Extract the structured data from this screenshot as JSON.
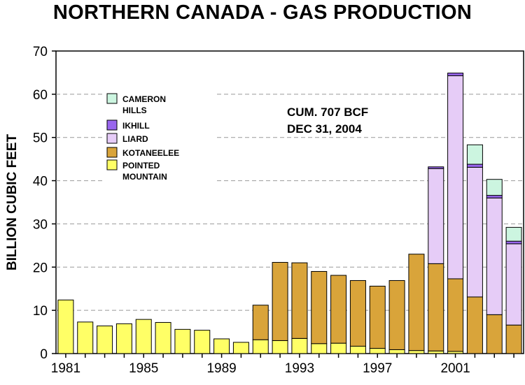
{
  "chart_data": {
    "type": "bar",
    "stacked": true,
    "title": "NORTHERN CANADA - GAS PRODUCTION",
    "xlabel": "",
    "ylabel": "BILLION CUBIC FEET",
    "ylim": [
      0,
      70
    ],
    "yticks": [
      0,
      10,
      20,
      30,
      40,
      50,
      60,
      70
    ],
    "grid": "horizontal dashed",
    "legend_position": "top-left",
    "categories": [
      "1981",
      "1982",
      "1983",
      "1984",
      "1985",
      "1986",
      "1987",
      "1988",
      "1989",
      "1990",
      "1991",
      "1992",
      "1993",
      "1994",
      "1995",
      "1996",
      "1997",
      "1998",
      "1999",
      "2000",
      "2001",
      "2002",
      "2003",
      "2004"
    ],
    "xtick_labels": [
      "1981",
      "1985",
      "1989",
      "1993",
      "1997",
      "2001"
    ],
    "series": [
      {
        "name": "POINTED MOUNTAIN",
        "color": "#ffff66",
        "values": [
          12.4,
          7.3,
          6.4,
          6.9,
          7.9,
          7.2,
          5.6,
          5.4,
          3.4,
          2.6,
          3.2,
          3.0,
          3.5,
          2.3,
          2.4,
          1.7,
          1.2,
          0.9,
          0.7,
          0.6,
          0.5,
          0,
          0,
          0
        ]
      },
      {
        "name": "KOTANEELEE",
        "color": "#d9a43a",
        "values": [
          0,
          0,
          0,
          0,
          0,
          0,
          0,
          0,
          0,
          0,
          8.0,
          18.1,
          17.5,
          16.7,
          15.7,
          15.2,
          14.4,
          16.0,
          22.3,
          20.2,
          16.8,
          13.1,
          9.0,
          6.6
        ]
      },
      {
        "name": "LIARD",
        "color": "#e6ccf7",
        "values": [
          0,
          0,
          0,
          0,
          0,
          0,
          0,
          0,
          0,
          0,
          0,
          0,
          0,
          0,
          0,
          0,
          0,
          0,
          0,
          22.0,
          47.0,
          30.0,
          27.0,
          18.8
        ]
      },
      {
        "name": "IKHILL",
        "color": "#9966ee",
        "values": [
          0,
          0,
          0,
          0,
          0,
          0,
          0,
          0,
          0,
          0,
          0,
          0,
          0,
          0,
          0,
          0,
          0,
          0,
          0,
          0.4,
          0.6,
          0.7,
          0.6,
          0.6
        ]
      },
      {
        "name": "CAMERON HILLS",
        "color": "#ccf5e0",
        "values": [
          0,
          0,
          0,
          0,
          0,
          0,
          0,
          0,
          0,
          0,
          0,
          0,
          0,
          0,
          0,
          0,
          0,
          0,
          0,
          0,
          0,
          4.5,
          3.7,
          3.2
        ]
      }
    ],
    "annotations": [
      "CUM. 707 BCF",
      "DEC 31, 2004"
    ]
  },
  "legend": {
    "items": [
      {
        "lines": [
          "CAMERON",
          "HILLS"
        ],
        "color": "#ccf5e0"
      },
      {
        "lines": [
          "IKHILL"
        ],
        "color": "#9966ee"
      },
      {
        "lines": [
          "LIARD"
        ],
        "color": "#e6ccf7"
      },
      {
        "lines": [
          "KOTANEELEE"
        ],
        "color": "#d9a43a"
      },
      {
        "lines": [
          "POINTED",
          "MOUNTAIN"
        ],
        "color": "#ffff66"
      }
    ]
  }
}
